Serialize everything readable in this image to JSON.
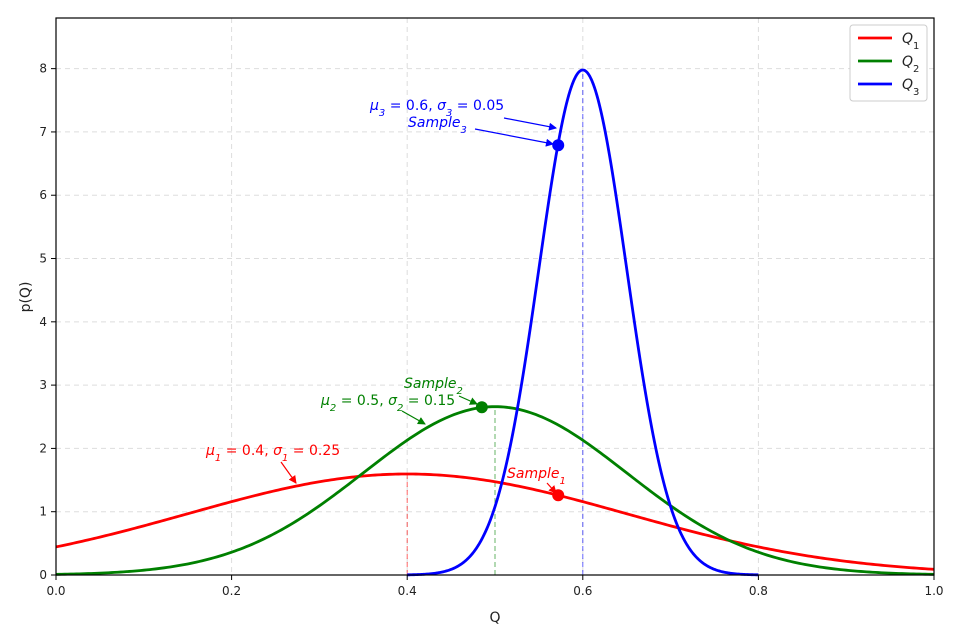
{
  "chart_data": {
    "type": "line",
    "title": "",
    "xlabel": "Q",
    "ylabel": "p(Q)",
    "xlim": [
      0.0,
      1.0
    ],
    "ylim": [
      0,
      8.8
    ],
    "x_ticks": [
      "0.0",
      "0.2",
      "0.4",
      "0.6",
      "0.8",
      "1.0"
    ],
    "y_ticks": [
      "0",
      "1",
      "2",
      "3",
      "4",
      "5",
      "6",
      "7",
      "8"
    ],
    "grid": true,
    "legend_position": "top-right",
    "series": [
      {
        "name": "Q1",
        "color": "#ff0000",
        "mu": 0.4,
        "sigma": 0.25,
        "x_range": [
          0.0,
          1.0
        ],
        "sample": {
          "x": 0.572,
          "y": 1.26,
          "label": "Sample1"
        },
        "annotation": "μ1 = 0.4, σ1 = 0.25"
      },
      {
        "name": "Q2",
        "color": "#008000",
        "mu": 0.5,
        "sigma": 0.15,
        "x_range": [
          0.0,
          1.0
        ],
        "sample": {
          "x": 0.485,
          "y": 2.65,
          "label": "Sample2"
        },
        "annotation": "μ2 = 0.5, σ2 = 0.15"
      },
      {
        "name": "Q3",
        "color": "#0000ff",
        "mu": 0.6,
        "sigma": 0.05,
        "x_range": [
          0.4,
          0.8
        ],
        "sample": {
          "x": 0.572,
          "y": 6.79,
          "label": "Sample3"
        },
        "annotation": "μ3 = 0.6, σ3 = 0.05"
      }
    ]
  }
}
